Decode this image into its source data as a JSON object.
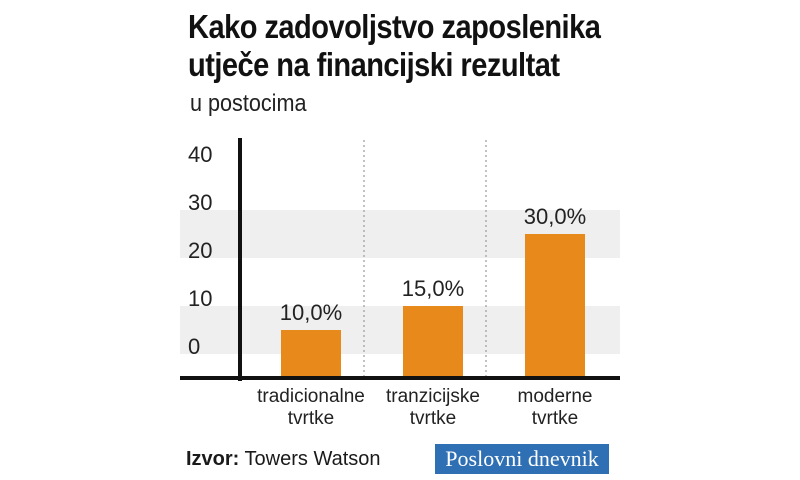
{
  "title_line1": "Kako zadovoljstvo zaposlenika",
  "title_line2": "utječe na financijski rezultat",
  "subtitle": "u postocima",
  "source_label": "Izvor:",
  "source_value": "Towers Watson",
  "logo_word1": "Poslovni",
  "logo_word2": "dnevnik",
  "colors": {
    "bar": "#e8891c",
    "band": "#efefef",
    "axis": "#111111",
    "logo_bg": "#2f6fb3"
  },
  "chart_data": {
    "type": "bar",
    "categories": [
      [
        "tradicionalne",
        "tvrtke"
      ],
      [
        "tranzicijske",
        "tvrtke"
      ],
      [
        "moderne",
        "tvrtke"
      ]
    ],
    "values": [
      10,
      15,
      30
    ],
    "data_labels": [
      "10,0%",
      "15,0%",
      "30,0%"
    ],
    "yticks": [
      "0",
      "10",
      "20",
      "30",
      "40"
    ],
    "ylim": [
      0,
      40
    ],
    "grid": "alternating horizontal bands",
    "separators": "dotted vertical lines between categories"
  }
}
